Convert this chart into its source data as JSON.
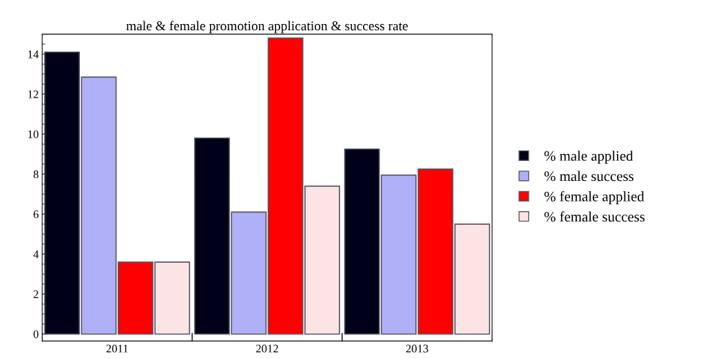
{
  "chart_data": {
    "type": "bar",
    "title": "male & female promotion application & success rate",
    "categories": [
      "2011",
      "2012",
      "2013"
    ],
    "series": [
      {
        "name": "% male applied",
        "color": "#000018",
        "values": [
          14.1,
          9.8,
          9.25
        ]
      },
      {
        "name": "% male success",
        "color": "#b0b0f8",
        "values": [
          12.85,
          6.1,
          7.95
        ]
      },
      {
        "name": "% female applied",
        "color": "#ff0000",
        "values": [
          3.6,
          14.8,
          8.25
        ]
      },
      {
        "name": "% female success",
        "color": "#fce4e4",
        "values": [
          3.6,
          7.4,
          5.5
        ]
      }
    ],
    "ylim": [
      -0.35,
      15
    ],
    "yticks": [
      0,
      2,
      4,
      6,
      8,
      10,
      12,
      14
    ],
    "grid": false,
    "legend": "right"
  }
}
